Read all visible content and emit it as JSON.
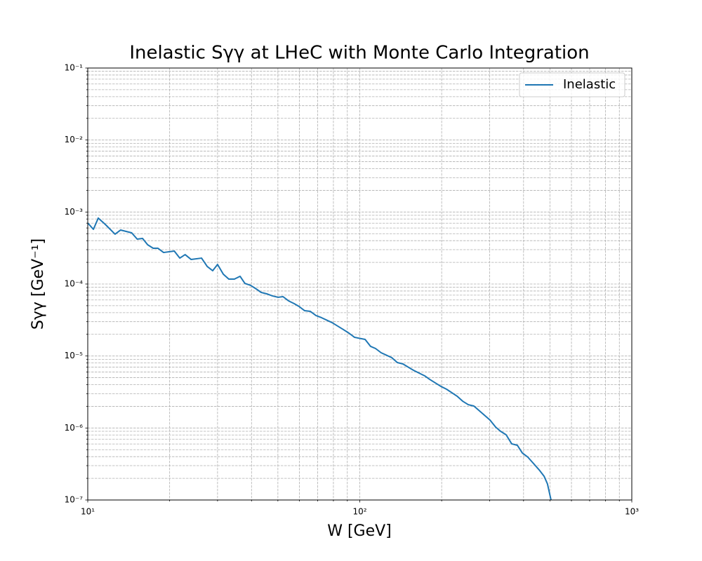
{
  "chart_data": {
    "type": "line",
    "title": "Inelastic Sγγ at LHeC with Monte Carlo Integration",
    "xlabel": "W [GeV]",
    "ylabel": "Sγγ [GeV⁻¹]",
    "xscale": "log",
    "yscale": "log",
    "grid": "both",
    "legend": "upper right",
    "xlim": [
      10,
      1000
    ],
    "ylim": [
      1e-07,
      0.1
    ],
    "xticks": [
      {
        "value": 10,
        "label": "10¹"
      },
      {
        "value": 100,
        "label": "10²"
      },
      {
        "value": 1000,
        "label": "10³"
      }
    ],
    "yticks": [
      {
        "value": 1e-07,
        "label": "10⁻⁷"
      },
      {
        "value": 1e-06,
        "label": "10⁻⁶"
      },
      {
        "value": 1e-05,
        "label": "10⁻⁵"
      },
      {
        "value": 0.0001,
        "label": "10⁻⁴"
      },
      {
        "value": 0.001,
        "label": "10⁻³"
      },
      {
        "value": 0.01,
        "label": "10⁻²"
      },
      {
        "value": 0.1,
        "label": "10⁻¹"
      }
    ],
    "xminorticks": [
      20,
      30,
      40,
      50,
      60,
      70,
      80,
      90,
      200,
      300,
      400,
      500,
      600,
      700,
      800,
      900
    ],
    "yminorticks": [
      2e-07,
      3e-07,
      4e-07,
      5e-07,
      6e-07,
      7e-07,
      8e-07,
      9e-07,
      2e-06,
      3e-06,
      4e-06,
      5e-06,
      6e-06,
      7e-06,
      8e-06,
      9e-06,
      2e-05,
      3e-05,
      4e-05,
      5e-05,
      6e-05,
      7e-05,
      8e-05,
      9e-05,
      0.0002,
      0.0003,
      0.0004,
      0.0005,
      0.0006,
      0.0007,
      0.0008,
      0.0009,
      0.002,
      0.003,
      0.004,
      0.005,
      0.006,
      0.007,
      0.008,
      0.009,
      0.02,
      0.03,
      0.04,
      0.05,
      0.06,
      0.07,
      0.08,
      0.09
    ],
    "x": [
      10,
      10.49,
      10.93,
      11.6,
      12.6,
      13.2,
      14.5,
      15.2,
      15.9,
      16.6,
      17.4,
      18.1,
      19.0,
      20.8,
      21.8,
      22.8,
      24.0,
      26.2,
      27.5,
      28.8,
      30.0,
      31.5,
      33.0,
      34.6,
      36.3,
      37.8,
      39.7,
      41.6,
      43.4,
      45.5,
      47.7,
      50.1,
      52.2,
      54.7,
      57.4,
      59.8,
      62.7,
      65.8,
      69.0,
      72.3,
      79.1,
      87.0,
      91.2,
      95.6,
      104.6,
      109.6,
      114.3,
      119.8,
      131.1,
      137.4,
      144.1,
      157.5,
      173.3,
      180.6,
      198.6,
      208.4,
      227.8,
      238.8,
      250.5,
      262.7,
      287.1,
      301.1,
      315.8,
      329.2,
      345.1,
      361.9,
      379.6,
      395.8,
      415,
      435.3,
      456.4,
      475.9,
      489.8,
      504.7
    ],
    "series": [
      {
        "name": "Inelastic",
        "color": "#1f77b4",
        "values": [
          0.000704,
          0.000575,
          0.000824,
          0.000673,
          0.000492,
          0.000562,
          0.000514,
          0.00042,
          0.00043,
          0.000351,
          0.000314,
          0.000314,
          0.000274,
          0.000287,
          0.000229,
          0.000256,
          0.000219,
          0.000229,
          0.000175,
          0.000153,
          0.000187,
          0.000137,
          0.000117,
          0.000117,
          0.000128,
          0.000102,
          9.57e-05,
          8.55e-05,
          7.64e-05,
          7.31e-05,
          6.84e-05,
          6.54e-05,
          6.68e-05,
          5.84e-05,
          5.34e-05,
          4.88e-05,
          4.26e-05,
          4.17e-05,
          3.65e-05,
          3.41e-05,
          2.91e-05,
          2.33e-05,
          2.08e-05,
          1.82e-05,
          1.7e-05,
          1.36e-05,
          1.27e-05,
          1.11e-05,
          9.49e-06,
          8.11e-06,
          7.76e-06,
          6.34e-06,
          5.3e-06,
          4.74e-06,
          3.79e-06,
          3.46e-06,
          2.77e-06,
          2.36e-06,
          2.11e-06,
          2.02e-06,
          1.51e-06,
          1.29e-06,
          1.03e-06,
          9e-07,
          8.05e-07,
          6.02e-07,
          5.75e-07,
          4.5e-07,
          3.93e-07,
          3.21e-07,
          2.62e-07,
          2.14e-07,
          1.67e-07,
          1e-07
        ]
      }
    ]
  }
}
